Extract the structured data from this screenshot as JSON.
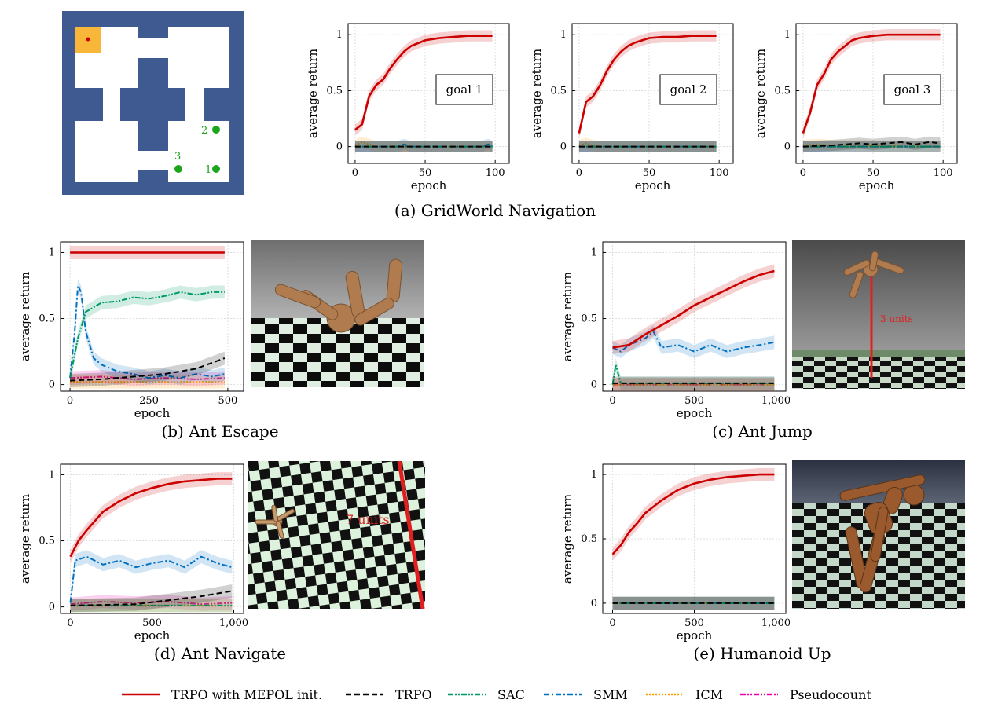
{
  "captions": {
    "a": "(a) GridWorld Navigation",
    "b": "(b) Ant Escape",
    "c": "(c) Ant Jump",
    "d": "(d) Ant Navigate",
    "e": "(e) Humanoid Up"
  },
  "gridworld_map": {
    "goal_labels": [
      "1",
      "2",
      "3"
    ],
    "wall_color": "#3f5a91",
    "start_color": "#f9b73a",
    "goal_color": "#1aa51a"
  },
  "scenes": {
    "jump_label": "3 units",
    "navigate_label": "7 units"
  },
  "legend": [
    {
      "name": "TRPO with MEPOL init.",
      "color": "#cc0000",
      "dash": "solid"
    },
    {
      "name": "TRPO",
      "color": "#000000",
      "dash": "dashed"
    },
    {
      "name": "SAC",
      "color": "#009966",
      "dash": "dashdotdot"
    },
    {
      "name": "SMM",
      "color": "#0070c0",
      "dash": "dashdot"
    },
    {
      "name": "ICM",
      "color": "#ff9900",
      "dash": "dotted"
    },
    {
      "name": "Pseudocount",
      "color": "#ee00aa",
      "dash": "dashdotdot"
    }
  ],
  "chart_data": [
    {
      "id": "grid1",
      "type": "line",
      "xlabel": "epoch",
      "ylabel": "average return",
      "xlim": [
        -5,
        110
      ],
      "ylim": [
        -0.15,
        1.1
      ],
      "xticks": [
        "0",
        "50",
        "100"
      ],
      "xtick_values": [
        0,
        50,
        100
      ],
      "yticks": [
        "0",
        "0.5",
        "1"
      ],
      "ytick_values": [
        0,
        0.5,
        1
      ],
      "annotation": "goal 1",
      "series": [
        {
          "legend_index": 0,
          "x": [
            0,
            5,
            10,
            15,
            20,
            25,
            30,
            35,
            40,
            50,
            60,
            70,
            80,
            90,
            98
          ],
          "y": [
            0.15,
            0.2,
            0.45,
            0.55,
            0.6,
            0.7,
            0.78,
            0.85,
            0.9,
            0.95,
            0.97,
            0.98,
            0.99,
            0.99,
            0.99
          ]
        },
        {
          "legend_index": 1,
          "x": [
            0,
            98
          ],
          "y": [
            0,
            0
          ]
        },
        {
          "legend_index": 2,
          "x": [
            0,
            98
          ],
          "y": [
            0,
            0
          ]
        },
        {
          "legend_index": 3,
          "x": [
            0,
            30,
            35,
            40,
            90,
            95,
            98
          ],
          "y": [
            0,
            0,
            0.02,
            0,
            0,
            0.02,
            0
          ]
        },
        {
          "legend_index": 4,
          "x": [
            0,
            5,
            10,
            15,
            98
          ],
          "y": [
            0.01,
            0.04,
            0.02,
            0,
            0
          ]
        },
        {
          "legend_index": 5,
          "x": [
            0,
            98
          ],
          "y": [
            0,
            0
          ]
        }
      ]
    },
    {
      "id": "grid2",
      "type": "line",
      "xlabel": "epoch",
      "ylabel": "average return",
      "xlim": [
        -5,
        110
      ],
      "ylim": [
        -0.15,
        1.1
      ],
      "xticks": [
        "0",
        "50",
        "100"
      ],
      "xtick_values": [
        0,
        50,
        100
      ],
      "yticks": [
        "0",
        "0.5",
        "1"
      ],
      "ytick_values": [
        0,
        0.5,
        1
      ],
      "annotation": "goal 2",
      "series": [
        {
          "legend_index": 0,
          "x": [
            0,
            5,
            10,
            15,
            20,
            25,
            30,
            35,
            40,
            50,
            60,
            70,
            80,
            90,
            98
          ],
          "y": [
            0.12,
            0.4,
            0.45,
            0.55,
            0.68,
            0.78,
            0.85,
            0.9,
            0.93,
            0.97,
            0.98,
            0.98,
            0.99,
            0.99,
            0.99
          ]
        },
        {
          "legend_index": 1,
          "x": [
            0,
            98
          ],
          "y": [
            0,
            0
          ]
        },
        {
          "legend_index": 2,
          "x": [
            0,
            98
          ],
          "y": [
            0,
            0
          ]
        },
        {
          "legend_index": 3,
          "x": [
            0,
            98
          ],
          "y": [
            0,
            0
          ]
        },
        {
          "legend_index": 4,
          "x": [
            0,
            5,
            10,
            15,
            98
          ],
          "y": [
            0.01,
            0.03,
            0.01,
            0,
            0
          ]
        },
        {
          "legend_index": 5,
          "x": [
            0,
            98
          ],
          "y": [
            0,
            0
          ]
        }
      ]
    },
    {
      "id": "grid3",
      "type": "line",
      "xlabel": "epoch",
      "ylabel": "average return",
      "xlim": [
        -5,
        110
      ],
      "ylim": [
        -0.15,
        1.1
      ],
      "xticks": [
        "0",
        "50",
        "100"
      ],
      "xtick_values": [
        0,
        50,
        100
      ],
      "yticks": [
        "0",
        "0.5",
        "1"
      ],
      "ytick_values": [
        0,
        0.5,
        1
      ],
      "annotation": "goal 3",
      "series": [
        {
          "legend_index": 0,
          "x": [
            0,
            5,
            10,
            15,
            20,
            25,
            30,
            35,
            40,
            50,
            60,
            70,
            80,
            90,
            98
          ],
          "y": [
            0.12,
            0.3,
            0.55,
            0.65,
            0.78,
            0.85,
            0.9,
            0.95,
            0.97,
            0.99,
            1.0,
            1.0,
            1.0,
            1.0,
            1.0
          ]
        },
        {
          "legend_index": 1,
          "x": [
            0,
            20,
            30,
            40,
            50,
            60,
            70,
            80,
            90,
            98
          ],
          "y": [
            0,
            0.01,
            0.02,
            0.03,
            0.02,
            0.03,
            0.04,
            0.02,
            0.04,
            0.03
          ]
        },
        {
          "legend_index": 2,
          "x": [
            0,
            98
          ],
          "y": [
            0,
            0
          ]
        },
        {
          "legend_index": 3,
          "x": [
            0,
            98
          ],
          "y": [
            0,
            0
          ]
        },
        {
          "legend_index": 4,
          "x": [
            0,
            10,
            20,
            98
          ],
          "y": [
            0.01,
            0.02,
            0.01,
            0
          ]
        },
        {
          "legend_index": 5,
          "x": [
            0,
            98
          ],
          "y": [
            0,
            0
          ]
        }
      ]
    },
    {
      "id": "antEscape",
      "type": "line",
      "xlabel": "epoch",
      "ylabel": "average return",
      "xlim": [
        -30,
        550
      ],
      "ylim": [
        -0.05,
        1.08
      ],
      "xticks": [
        "0",
        "250",
        "500"
      ],
      "xtick_values": [
        0,
        250,
        500
      ],
      "yticks": [
        "0",
        "0.5",
        "1"
      ],
      "ytick_values": [
        0,
        0.5,
        1
      ],
      "series": [
        {
          "legend_index": 0,
          "x": [
            0,
            490
          ],
          "y": [
            1,
            1
          ]
        },
        {
          "legend_index": 1,
          "x": [
            0,
            100,
            200,
            300,
            400,
            490
          ],
          "y": [
            0.03,
            0.04,
            0.06,
            0.08,
            0.12,
            0.2
          ]
        },
        {
          "legend_index": 2,
          "x": [
            0,
            25,
            50,
            100,
            150,
            200,
            250,
            300,
            350,
            400,
            450,
            490
          ],
          "y": [
            0.05,
            0.35,
            0.55,
            0.62,
            0.63,
            0.66,
            0.65,
            0.67,
            0.7,
            0.68,
            0.7,
            0.7
          ]
        },
        {
          "legend_index": 3,
          "x": [
            0,
            15,
            25,
            35,
            50,
            75,
            100,
            150,
            200,
            250,
            300,
            350,
            400,
            450,
            490
          ],
          "y": [
            0.05,
            0.4,
            0.75,
            0.7,
            0.4,
            0.2,
            0.15,
            0.1,
            0.08,
            0.05,
            0.07,
            0.05,
            0.08,
            0.06,
            0.08
          ]
        },
        {
          "legend_index": 4,
          "x": [
            0,
            490
          ],
          "y": [
            0.02,
            0.02
          ]
        },
        {
          "legend_index": 5,
          "x": [
            0,
            100,
            200,
            300,
            400,
            490
          ],
          "y": [
            0.05,
            0.06,
            0.04,
            0.05,
            0.04,
            0.05
          ]
        }
      ]
    },
    {
      "id": "antJump",
      "type": "line",
      "xlabel": "epoch",
      "ylabel": "average return",
      "xlim": [
        -60,
        1060
      ],
      "ylim": [
        -0.05,
        1.08
      ],
      "xticks": [
        "0",
        "500",
        "1,000"
      ],
      "xtick_values": [
        0,
        500,
        1000
      ],
      "yticks": [
        "0",
        "0.5",
        "1"
      ],
      "ytick_values": [
        0,
        0.5,
        1
      ],
      "series": [
        {
          "legend_index": 0,
          "x": [
            0,
            100,
            200,
            300,
            400,
            500,
            600,
            700,
            800,
            900,
            990
          ],
          "y": [
            0.28,
            0.3,
            0.38,
            0.45,
            0.52,
            0.6,
            0.66,
            0.72,
            0.78,
            0.83,
            0.86
          ]
        },
        {
          "legend_index": 1,
          "x": [
            0,
            990
          ],
          "y": [
            0.01,
            0.01
          ]
        },
        {
          "legend_index": 2,
          "x": [
            0,
            20,
            50,
            990
          ],
          "y": [
            0,
            0.15,
            0.01,
            0.01
          ]
        },
        {
          "legend_index": 3,
          "x": [
            0,
            50,
            100,
            200,
            250,
            300,
            400,
            500,
            600,
            700,
            800,
            900,
            990
          ],
          "y": [
            0.28,
            0.25,
            0.3,
            0.35,
            0.4,
            0.28,
            0.3,
            0.25,
            0.3,
            0.25,
            0.28,
            0.3,
            0.32
          ]
        },
        {
          "legend_index": 4,
          "x": [
            0,
            990
          ],
          "y": [
            0,
            0
          ]
        },
        {
          "legend_index": 5,
          "x": [
            0,
            990
          ],
          "y": [
            0,
            0
          ]
        }
      ]
    },
    {
      "id": "antNavigate",
      "type": "line",
      "xlabel": "epoch",
      "ylabel": "average return",
      "xlim": [
        -60,
        1060
      ],
      "ylim": [
        -0.05,
        1.08
      ],
      "xticks": [
        "0",
        "500",
        "1,000"
      ],
      "xtick_values": [
        0,
        500,
        1000
      ],
      "yticks": [
        "0",
        "0.5",
        "1"
      ],
      "ytick_values": [
        0,
        0.5,
        1
      ],
      "series": [
        {
          "legend_index": 0,
          "x": [
            0,
            50,
            100,
            150,
            200,
            300,
            400,
            500,
            600,
            700,
            800,
            900,
            990
          ],
          "y": [
            0.38,
            0.5,
            0.58,
            0.65,
            0.72,
            0.8,
            0.86,
            0.9,
            0.93,
            0.95,
            0.96,
            0.97,
            0.97
          ]
        },
        {
          "legend_index": 1,
          "x": [
            0,
            400,
            600,
            800,
            990
          ],
          "y": [
            0.01,
            0.02,
            0.05,
            0.08,
            0.12
          ]
        },
        {
          "legend_index": 2,
          "x": [
            0,
            990
          ],
          "y": [
            0.01,
            0.01
          ]
        },
        {
          "legend_index": 3,
          "x": [
            0,
            30,
            100,
            200,
            300,
            400,
            500,
            600,
            700,
            800,
            900,
            990
          ],
          "y": [
            0.03,
            0.35,
            0.38,
            0.32,
            0.35,
            0.3,
            0.33,
            0.35,
            0.3,
            0.38,
            0.33,
            0.3
          ]
        },
        {
          "legend_index": 4,
          "x": [
            0,
            990
          ],
          "y": [
            0.01,
            0.01
          ]
        },
        {
          "legend_index": 5,
          "x": [
            0,
            200,
            400,
            600,
            800,
            990
          ],
          "y": [
            0.02,
            0.04,
            0.03,
            0.04,
            0.02,
            0.03
          ]
        }
      ]
    },
    {
      "id": "humanoidUp",
      "type": "line",
      "xlabel": "epoch",
      "ylabel": "average return",
      "xlim": [
        -60,
        1060
      ],
      "ylim": [
        -0.08,
        1.08
      ],
      "xticks": [
        "0",
        "500",
        "1,000"
      ],
      "xtick_values": [
        0,
        500,
        1000
      ],
      "yticks": [
        "0",
        "0.5",
        "1"
      ],
      "ytick_values": [
        0,
        0.5,
        1
      ],
      "series": [
        {
          "legend_index": 0,
          "x": [
            0,
            50,
            100,
            150,
            200,
            250,
            300,
            400,
            500,
            600,
            700,
            800,
            900,
            990
          ],
          "y": [
            0.38,
            0.45,
            0.55,
            0.62,
            0.7,
            0.75,
            0.8,
            0.88,
            0.93,
            0.96,
            0.98,
            0.99,
            1.0,
            1.0
          ]
        },
        {
          "legend_index": 1,
          "x": [
            0,
            990
          ],
          "y": [
            0,
            0
          ]
        },
        {
          "legend_index": 2,
          "x": [
            0,
            990
          ],
          "y": [
            0,
            0
          ]
        },
        {
          "legend_index": 3,
          "x": [
            0,
            990
          ],
          "y": [
            0,
            0
          ]
        },
        {
          "legend_index": 4,
          "x": [
            0,
            990
          ],
          "y": [
            0,
            0
          ]
        },
        {
          "legend_index": 5,
          "x": [
            0,
            990
          ],
          "y": [
            0,
            0
          ]
        }
      ]
    }
  ]
}
